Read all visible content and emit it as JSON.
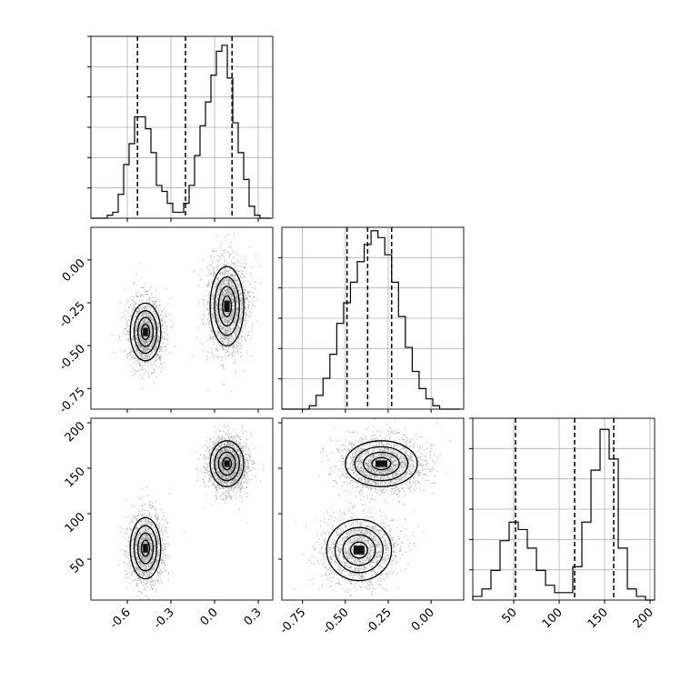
{
  "chart_data": {
    "type": "corner",
    "parameters": [
      {
        "range": [
          -0.85,
          0.4
        ],
        "ticks": [
          "-0.6",
          "-0.3",
          "0.0",
          "0.3"
        ],
        "tick_values": [
          -0.6,
          -0.3,
          0.0,
          0.3
        ],
        "quantiles": [
          -0.53,
          -0.2,
          0.12
        ]
      },
      {
        "range": [
          -0.87,
          0.19
        ],
        "ticks": [
          "-0.75",
          "-0.50",
          "-0.25",
          "0.00"
        ],
        "tick_values": [
          -0.75,
          -0.5,
          -0.25,
          0.0
        ],
        "quantiles": [
          -0.49,
          -0.37,
          -0.23
        ]
      },
      {
        "range": [
          5,
          205
        ],
        "ticks": [
          "50",
          "100",
          "150",
          "200"
        ],
        "tick_values": [
          50,
          100,
          150,
          200
        ],
        "quantiles": [
          52,
          117,
          160
        ]
      }
    ],
    "histograms": [
      {
        "bins": [
          -0.85,
          -0.8125,
          -0.775,
          -0.7375,
          -0.7,
          -0.6625,
          -0.625,
          -0.5875,
          -0.55,
          -0.5125,
          -0.475,
          -0.4375,
          -0.4,
          -0.3625,
          -0.325,
          -0.2875,
          -0.25,
          -0.2125,
          -0.175,
          -0.1375,
          -0.1,
          -0.0625,
          -0.025,
          0.0125,
          0.05,
          0.0875,
          0.125,
          0.1625,
          0.2,
          0.2375,
          0.275,
          0.3125,
          0.35,
          0.3875
        ],
        "counts": [
          0,
          0,
          0,
          1,
          2,
          8,
          18,
          25,
          34,
          34,
          30,
          22,
          11,
          9,
          5,
          2,
          2,
          5,
          11,
          21,
          31,
          39,
          48,
          56,
          58,
          47,
          32,
          22,
          13,
          4,
          1,
          0,
          0
        ],
        "peak": 61
      },
      {
        "bins": [
          -0.87,
          -0.83,
          -0.79,
          -0.75,
          -0.71,
          -0.67,
          -0.63,
          -0.59,
          -0.55,
          -0.51,
          -0.47,
          -0.43,
          -0.39,
          -0.35,
          -0.31,
          -0.27,
          -0.23,
          -0.19,
          -0.15,
          -0.11,
          -0.07,
          -0.03,
          0.01,
          0.05,
          0.09,
          0.13,
          0.17
        ],
        "counts": [
          0,
          0,
          0,
          0,
          1,
          4,
          9,
          16,
          25,
          31,
          37,
          43,
          48,
          52,
          50,
          45,
          37,
          27,
          18,
          11,
          6,
          3,
          1,
          0,
          0,
          0
        ],
        "peak": 53
      },
      {
        "bins": [
          5,
          15,
          25,
          35,
          45,
          55,
          65,
          75,
          85,
          95,
          105,
          115,
          125,
          135,
          145,
          155,
          165,
          175,
          185,
          195,
          205
        ],
        "counts": [
          1,
          3,
          8,
          16,
          21,
          19,
          14,
          8,
          4,
          2,
          2,
          9,
          21,
          35,
          46,
          38,
          14,
          3,
          1,
          0
        ],
        "peak": 49
      }
    ],
    "blobs": {
      "p1_p0": [
        {
          "cx": -0.475,
          "cy": -0.42,
          "sx": 0.05,
          "sy": 0.08,
          "n": 1400
        },
        {
          "cx": 0.085,
          "cy": -0.27,
          "sx": 0.055,
          "sy": 0.11,
          "n": 1800
        }
      ],
      "p2_p0": [
        {
          "cx": -0.475,
          "cy": 62,
          "sx": 0.05,
          "sy": 16,
          "n": 1400
        },
        {
          "cx": 0.085,
          "cy": 155,
          "sx": 0.055,
          "sy": 12,
          "n": 1800
        }
      ],
      "p2_p1": [
        {
          "cx": -0.42,
          "cy": 60,
          "sx": 0.09,
          "sy": 16,
          "n": 1400
        },
        {
          "cx": -0.29,
          "cy": 155,
          "sx": 0.1,
          "sy": 12,
          "n": 1800
        }
      ]
    },
    "title": "",
    "xlabel": "",
    "ylabel": ""
  }
}
